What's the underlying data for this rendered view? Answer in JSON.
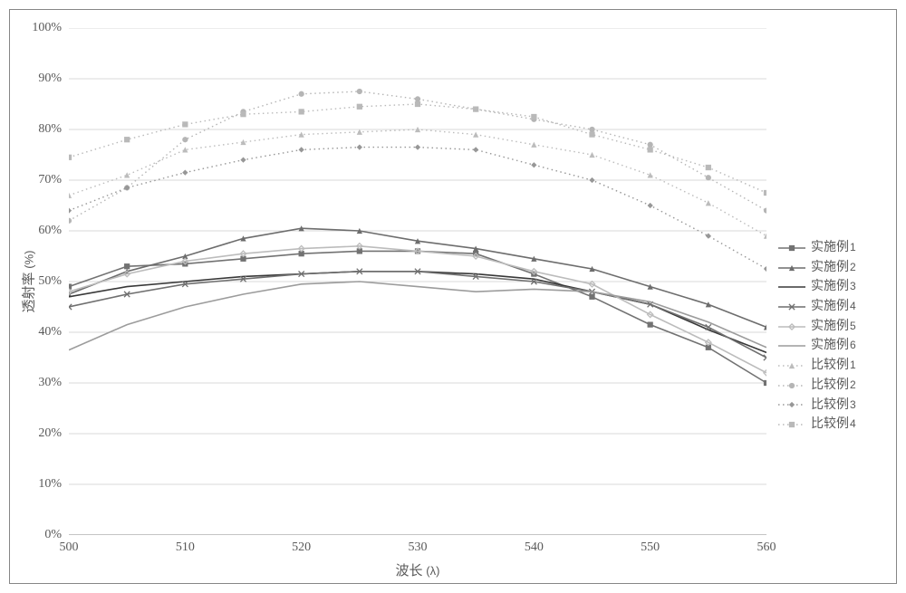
{
  "axes": {
    "x_label": "波长",
    "x_unit": "(λ)",
    "y_label": "透射率",
    "y_unit": "(%)",
    "x_ticks": [
      500,
      510,
      520,
      530,
      540,
      550,
      560
    ],
    "y_ticks": [
      0,
      10,
      20,
      30,
      40,
      50,
      60,
      70,
      80,
      90,
      100
    ],
    "y_tick_suffix": "%",
    "xlim": [
      500,
      560
    ],
    "ylim": [
      0,
      100
    ],
    "x_values": [
      500,
      505,
      510,
      515,
      520,
      525,
      530,
      535,
      540,
      545,
      550,
      555,
      560
    ]
  },
  "style": {
    "frame_border": "#868686",
    "grid_color": "#d9d9d9",
    "axis_color": "#888888",
    "background": "#ffffff",
    "tick_font_size": 14,
    "axis_title_font_size": 15,
    "legend_font_size": 14,
    "line_width_solid": 1.6,
    "line_width_dotted": 1.4,
    "marker_size": 5.0,
    "dotted_pattern": "1.5 3.5"
  },
  "series": [
    {
      "id": "s1",
      "label_main": "实施例",
      "label_num": "1",
      "color": "#727272",
      "marker": "square",
      "dashed": false,
      "y": [
        49,
        53,
        53.5,
        54.5,
        55.5,
        56,
        56,
        55.5,
        51.5,
        47,
        41.5,
        37,
        30
      ]
    },
    {
      "id": "s2",
      "label_main": "实施例",
      "label_num": "2",
      "color": "#6d6d6d",
      "marker": "triangle",
      "dashed": false,
      "y": [
        47.5,
        52,
        55,
        58.5,
        60.5,
        60,
        58,
        56.5,
        54.5,
        52.5,
        49,
        45.5,
        41
      ]
    },
    {
      "id": "s3",
      "label_main": "实施例",
      "label_num": "3",
      "color": "#383838",
      "marker": "none",
      "dashed": false,
      "y": [
        47,
        49,
        50,
        51,
        51.5,
        52,
        52,
        51.5,
        50.5,
        48,
        45.5,
        40.5,
        36
      ]
    },
    {
      "id": "s4",
      "label_main": "实施例",
      "label_num": "4",
      "color": "#6f6f6f",
      "marker": "x",
      "dashed": false,
      "y": [
        45,
        47.5,
        49.5,
        50.5,
        51.5,
        52,
        52,
        51,
        50,
        48,
        45.5,
        41,
        35
      ]
    },
    {
      "id": "s5",
      "label_main": "实施例",
      "label_num": "5",
      "color": "#bcbcbc",
      "marker": "diamond-open",
      "dashed": false,
      "y": [
        48,
        51.5,
        54,
        55.5,
        56.5,
        57,
        56,
        55,
        52,
        49.5,
        43.5,
        38,
        32
      ]
    },
    {
      "id": "s6",
      "label_main": "实施例",
      "label_num": "6",
      "color": "#9c9c9c",
      "marker": "none",
      "dashed": false,
      "y": [
        36.5,
        41.5,
        45,
        47.5,
        49.5,
        50,
        49,
        48,
        48.5,
        48,
        46,
        42,
        37
      ]
    },
    {
      "id": "c1",
      "label_main": "比较例",
      "label_num": "1",
      "color": "#bcbcbc",
      "marker": "triangle",
      "dashed": true,
      "y": [
        67,
        71,
        76,
        77.5,
        79,
        79.5,
        80,
        79,
        77,
        75,
        71,
        65.5,
        59
      ]
    },
    {
      "id": "c2",
      "label_main": "比较例",
      "label_num": "2",
      "color": "#b5b5b5",
      "marker": "circle",
      "dashed": true,
      "y": [
        62,
        68.5,
        78,
        83.5,
        87,
        87.5,
        86,
        84,
        82,
        80,
        77,
        70.5,
        64
      ]
    },
    {
      "id": "c3",
      "label_main": "比较例",
      "label_num": "3",
      "color": "#979797",
      "marker": "diamond",
      "dashed": true,
      "y": [
        64,
        68.5,
        71.5,
        74,
        76,
        76.5,
        76.5,
        76,
        73,
        70,
        65,
        59,
        52.5
      ]
    },
    {
      "id": "c4",
      "label_main": "比较例",
      "label_num": "4",
      "color": "#b9b9b9",
      "marker": "square",
      "dashed": true,
      "y": [
        74.5,
        78,
        81,
        83,
        83.5,
        84.5,
        85,
        84,
        82.5,
        79,
        76,
        72.5,
        67.5
      ]
    }
  ]
}
